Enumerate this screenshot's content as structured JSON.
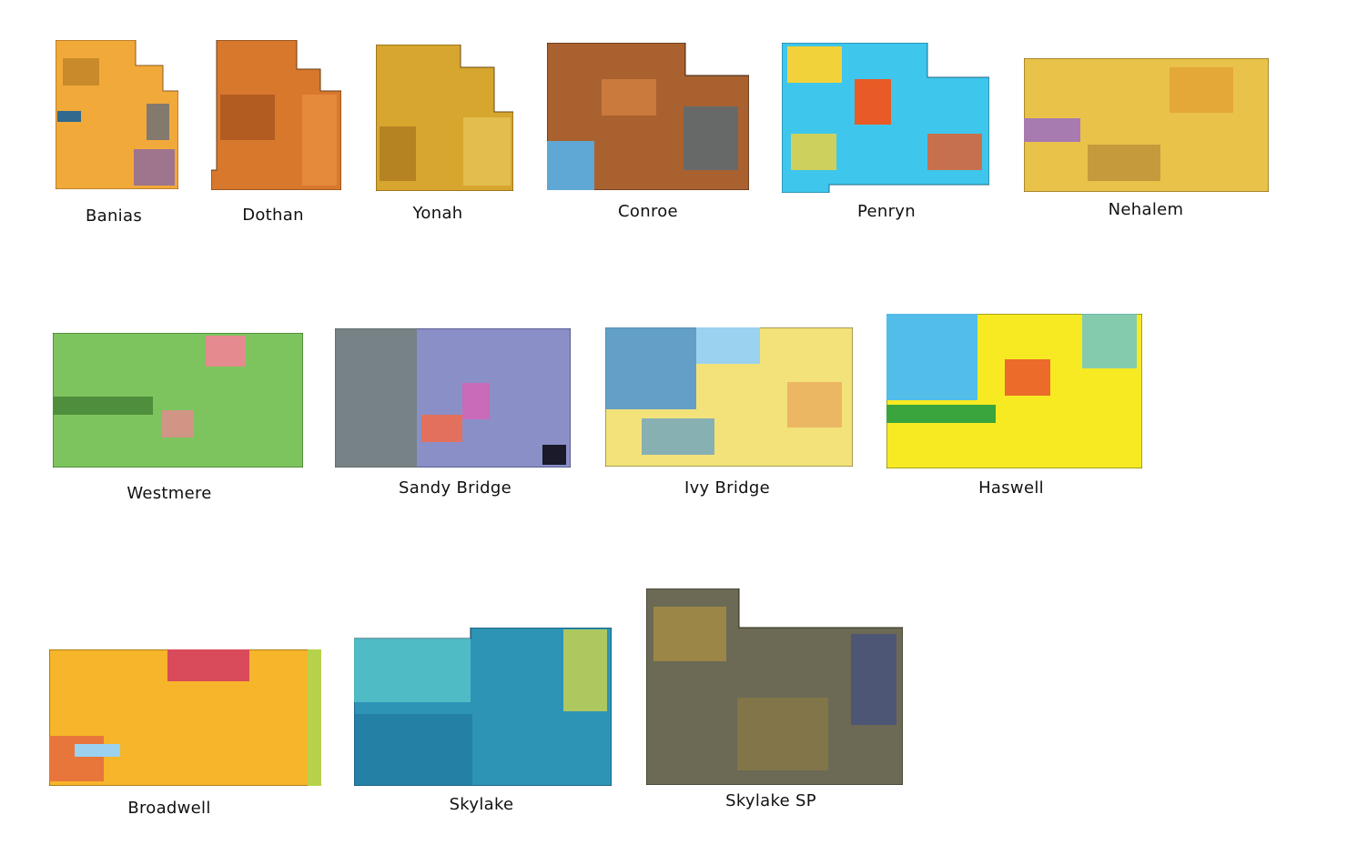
{
  "chips": [
    {
      "name": "Banias",
      "colors": [
        "#f1a93a",
        "#c98a2b",
        "#2f6a8e",
        "#7aa13e"
      ]
    },
    {
      "name": "Dothan",
      "colors": [
        "#d7782d",
        "#b25c22",
        "#e88f3f",
        "#8b4a1e"
      ]
    },
    {
      "name": "Yonah",
      "colors": [
        "#d6a62e",
        "#b58322",
        "#e3bd4d",
        "#8a5b1c"
      ]
    },
    {
      "name": "Conroe",
      "colors": [
        "#a9622f",
        "#5fa8d6",
        "#c97a3c",
        "#3c6e8f"
      ]
    },
    {
      "name": "Penryn",
      "colors": [
        "#3fc6ec",
        "#f2d23a",
        "#e85a26",
        "#9ad3e8"
      ]
    },
    {
      "name": "Nehalem",
      "colors": [
        "#e9c24a",
        "#c59a3c",
        "#a77bb0",
        "#e4a838"
      ]
    },
    {
      "name": "Westmere",
      "colors": [
        "#7dc45e",
        "#4e8e3d",
        "#e58a8f",
        "#a8d27a"
      ]
    },
    {
      "name": "Sandy Bridge",
      "colors": [
        "#8a8fc8",
        "#6b7a5a",
        "#c96bb8",
        "#e2705d"
      ]
    },
    {
      "name": "Ivy Bridge",
      "colors": [
        "#f3e27a",
        "#3f8fd9",
        "#9ad2f0",
        "#e89b52"
      ]
    },
    {
      "name": "Haswell",
      "colors": [
        "#f7ea23",
        "#52bde8",
        "#e84a2c",
        "#3aa53c"
      ]
    },
    {
      "name": "Broadwell",
      "colors": [
        "#f6b52a",
        "#e8753a",
        "#d94a5a",
        "#b6d24a"
      ]
    },
    {
      "name": "Skylake",
      "colors": [
        "#2d94b6",
        "#58c6c9",
        "#e4de3a",
        "#17648c"
      ]
    },
    {
      "name": "Skylake SP",
      "colors": [
        "#6c6a55",
        "#c9a23a",
        "#3a4a8c",
        "#8a7b45"
      ]
    }
  ]
}
